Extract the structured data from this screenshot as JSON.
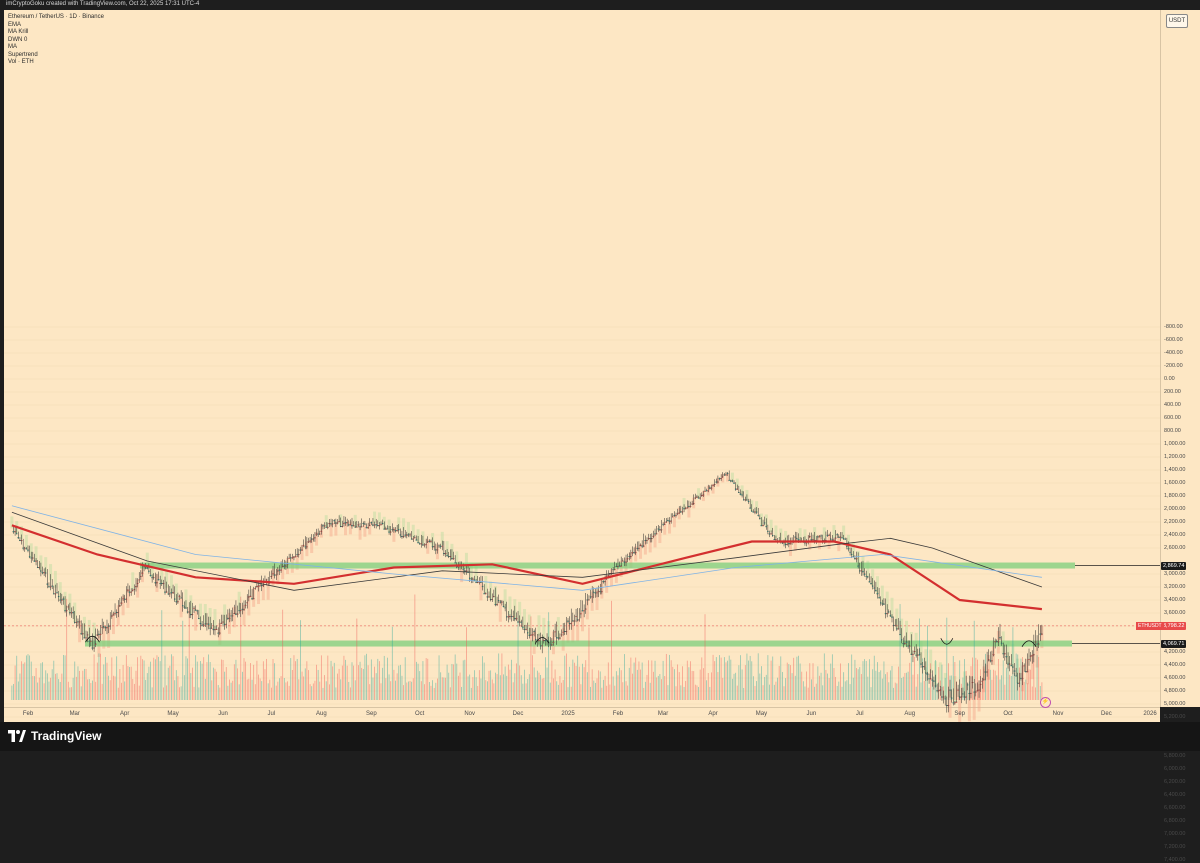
{
  "header": {
    "creator_line": "imCryptoGoku created with TradingView.com, Oct 22, 2025 17:31 UTC-4"
  },
  "legend": {
    "symbol": "Ethereum / TetherUS · 1D · Binance",
    "indicators": [
      "EMA",
      "MA Krill",
      "DWN 0",
      "MA",
      "Supertrend",
      "Vol · ETH"
    ]
  },
  "price_axis": {
    "unit": "USDT",
    "labels": [
      "7,400.00",
      "7,200.00",
      "7,000.00",
      "6,800.00",
      "6,600.00",
      "6,400.00",
      "6,200.00",
      "6,000.00",
      "5,800.00",
      "5,600.00",
      "5,400.00",
      "5,200.00",
      "5,000.00",
      "4,800.00",
      "4,600.00",
      "4,400.00",
      "4,200.00",
      "3,800.00",
      "3,600.00",
      "3,400.00",
      "3,200.00",
      "3,000.00",
      "2,600.00",
      "2,400.00",
      "2,200.00",
      "2,000.00",
      "1,800.00",
      "1,600.00",
      "1,400.00",
      "1,200.00",
      "1,000.00",
      "800.00",
      "600.00",
      "400.00",
      "200.00",
      "0.00",
      "-200.00",
      "-400.00",
      "-600.00",
      "-800.00"
    ],
    "resistance_tag": "4,069.71",
    "support_tag": "2,869.74",
    "current_tag": "3,798.22",
    "ticker_tag": "ETHUSDT"
  },
  "time_axis": {
    "labels": [
      "Feb",
      "Mar",
      "Apr",
      "May",
      "Jun",
      "Jul",
      "Aug",
      "Sep",
      "Oct",
      "Nov",
      "Dec",
      "2025",
      "Feb",
      "Mar",
      "Apr",
      "May",
      "Jun",
      "Jul",
      "Aug",
      "Sep",
      "Oct",
      "Nov",
      "Dec",
      "2026"
    ]
  },
  "footer": {
    "brand": "TradingView"
  },
  "colors": {
    "background": "#fde7c4",
    "up": "#26a69a",
    "down": "#ef5350",
    "ma_red": "#d32f2f",
    "ma_black": "#3a3a3a",
    "ma_blue": "#7fb3e6",
    "zone_green": "#7ccf7c",
    "supertrend_down_fill": "#f4a58a",
    "supertrend_up_fill": "#b9dca0"
  },
  "chart_data": {
    "type": "candlestick",
    "title": "Ethereum / TetherUS · 1D · Binance",
    "ylim": [
      -800,
      7500
    ],
    "levels": {
      "resistance": 4069.71,
      "support": 2869.74,
      "current": 3798.22
    },
    "key_points": [
      {
        "date": "2024-01-22",
        "close": 2300
      },
      {
        "date": "2024-03-12",
        "close": 4080
      },
      {
        "date": "2024-04-13",
        "close": 2900
      },
      {
        "date": "2024-05-27",
        "close": 3900
      },
      {
        "date": "2024-07-05",
        "close": 2900
      },
      {
        "date": "2024-08-05",
        "close": 2200
      },
      {
        "date": "2024-09-06",
        "close": 2250
      },
      {
        "date": "2024-10-15",
        "close": 2600
      },
      {
        "date": "2024-12-16",
        "close": 4100
      },
      {
        "date": "2025-01-06",
        "close": 3650
      },
      {
        "date": "2025-02-03",
        "close": 2800
      },
      {
        "date": "2025-03-10",
        "close": 2050
      },
      {
        "date": "2025-04-09",
        "close": 1450
      },
      {
        "date": "2025-05-10",
        "close": 2500
      },
      {
        "date": "2025-06-20",
        "close": 2400
      },
      {
        "date": "2025-07-20",
        "close": 3700
      },
      {
        "date": "2025-08-24",
        "close": 4900
      },
      {
        "date": "2025-09-13",
        "close": 4700
      },
      {
        "date": "2025-09-25",
        "close": 3950
      },
      {
        "date": "2025-10-07",
        "close": 4700
      },
      {
        "date": "2025-10-22",
        "close": 3798
      }
    ],
    "series": [
      {
        "name": "MA red",
        "points": [
          [
            "2024-01-22",
            2250
          ],
          [
            "2024-03-15",
            2700
          ],
          [
            "2024-05-15",
            3050
          ],
          [
            "2024-07-15",
            3150
          ],
          [
            "2024-09-15",
            2900
          ],
          [
            "2024-11-15",
            2850
          ],
          [
            "2025-01-10",
            3150
          ],
          [
            "2025-03-15",
            2750
          ],
          [
            "2025-04-25",
            2500
          ],
          [
            "2025-06-15",
            2500
          ],
          [
            "2025-07-20",
            2700
          ],
          [
            "2025-09-01",
            3400
          ],
          [
            "2025-10-22",
            3540
          ]
        ]
      },
      {
        "name": "MA black",
        "points": [
          [
            "2024-01-22",
            2050
          ],
          [
            "2024-04-15",
            2800
          ],
          [
            "2024-07-15",
            3250
          ],
          [
            "2024-10-15",
            2950
          ],
          [
            "2025-01-10",
            3050
          ],
          [
            "2025-04-15",
            2750
          ],
          [
            "2025-06-15",
            2550
          ],
          [
            "2025-07-20",
            2450
          ],
          [
            "2025-08-15",
            2600
          ],
          [
            "2025-10-22",
            3200
          ]
        ]
      },
      {
        "name": "MA blue",
        "points": [
          [
            "2024-01-22",
            1950
          ],
          [
            "2024-05-15",
            2700
          ],
          [
            "2024-09-15",
            3000
          ],
          [
            "2025-01-10",
            3250
          ],
          [
            "2025-04-15",
            2900
          ],
          [
            "2025-07-15",
            2700
          ],
          [
            "2025-10-22",
            3050
          ]
        ]
      }
    ]
  }
}
